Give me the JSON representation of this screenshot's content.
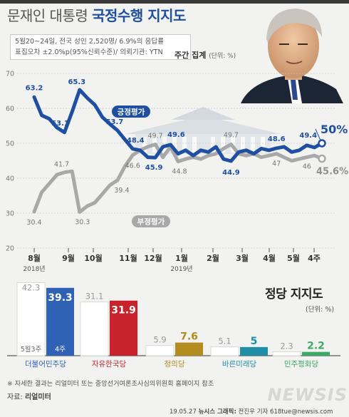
{
  "header": {
    "title_prefix": "문재인 대통령",
    "title_main": "국정수행 지지도",
    "info_line1": "5월20~24일, 전국 성인 2,520명/ 6.9%의 응답률",
    "info_line2": "표집오차 ±2.0%p(95%신뢰수준)/ 의뢰기관: YTN",
    "unit_main": "주간 집계",
    "unit_sub": "(단위: %)"
  },
  "colors": {
    "approve": "#1e4fa0",
    "disapprove": "#a8a8a8",
    "accent": "#1e4fa0",
    "background": "#f2f2f0",
    "party_minjoo": "#2f62b4",
    "party_hankook": "#c8232c",
    "party_justice": "#b38b1e",
    "party_bareun": "#1f8fa6",
    "party_minpyeong": "#3aaa66"
  },
  "icons": {
    "portrait": "president-portrait",
    "background_art": "blue-house-illustration"
  },
  "chart_data": [
    {
      "type": "line",
      "ylim": [
        20,
        70
      ],
      "yticks": [
        20,
        30,
        40,
        50,
        60,
        70
      ],
      "grid": true,
      "x_labels": [
        "8월",
        "9월",
        "10월",
        "11월",
        "12월",
        "1월",
        "2월",
        "3월",
        "4월",
        "5월",
        "4주"
      ],
      "x_sublabels": [
        {
          "label": "2018년",
          "at": "8월"
        },
        {
          "label": "2019년",
          "at": "1월"
        }
      ],
      "series": [
        {
          "name": "긍정평가",
          "values": [
            63.2,
            58.0,
            57.0,
            54.5,
            53.1,
            59.0,
            65.3,
            63.0,
            61.0,
            57.5,
            55.5,
            53.7,
            51.0,
            48.4,
            48.0,
            46.0,
            45.9,
            49.0,
            49.6,
            47.0,
            48.0,
            46.5,
            48.0,
            47.5,
            49.0,
            45.5,
            44.9,
            47.5,
            48.0,
            47.0,
            48.5,
            48.0,
            48.6,
            49.0,
            47.5,
            48.0,
            49.4,
            48.8,
            50.0
          ],
          "labels": [
            {
              "i": 0,
              "text": "63.2"
            },
            {
              "i": 4,
              "text": "53.1"
            },
            {
              "i": 6,
              "text": "65.3"
            },
            {
              "i": 11,
              "text": "53.7"
            },
            {
              "i": 13,
              "text": "48.4"
            },
            {
              "i": 16,
              "text": "45.9"
            },
            {
              "i": 18,
              "text": "49.6"
            },
            {
              "i": 26,
              "text": "44.9"
            },
            {
              "i": 32,
              "text": "48.6"
            },
            {
              "i": 36,
              "text": "49.4"
            },
            {
              "i": 38,
              "text": "50%"
            }
          ]
        },
        {
          "name": "부정평가",
          "values": [
            30.4,
            36.0,
            38.5,
            41.0,
            41.7,
            42.0,
            30.3,
            32.0,
            33.0,
            35.5,
            38.0,
            39.4,
            43.5,
            46.6,
            48.0,
            49.0,
            49.7,
            46.0,
            49.0,
            44.8,
            45.5,
            46.0,
            45.5,
            46.5,
            47.0,
            48.5,
            49.7,
            47.0,
            46.5,
            47.0,
            46.0,
            46.5,
            47.0,
            46.0,
            45.0,
            45.5,
            46.0,
            46.5,
            45.6
          ],
          "labels": [
            {
              "i": 0,
              "text": "30.4"
            },
            {
              "i": 4,
              "text": "41.7"
            },
            {
              "i": 6,
              "text": "30.3"
            },
            {
              "i": 11,
              "text": "39.4"
            },
            {
              "i": 13,
              "text": "46.6"
            },
            {
              "i": 16,
              "text": "49.7"
            },
            {
              "i": 19,
              "text": "44.8"
            },
            {
              "i": 26,
              "text": "49.7"
            },
            {
              "i": 32,
              "text": "47"
            },
            {
              "i": 36,
              "text": "46"
            },
            {
              "i": 38,
              "text": "45.6%"
            }
          ]
        }
      ]
    },
    {
      "type": "bar",
      "title": "정당 지지도",
      "unit": "(단위: %)",
      "ylim": [
        0,
        45
      ],
      "period_labels": [
        "5월3주",
        "4주"
      ],
      "categories": [
        "더불어민주당",
        "자유한국당",
        "정의당",
        "바른미래당",
        "민주평화당"
      ],
      "series": [
        {
          "name": "5월3주",
          "values": [
            42.3,
            31.1,
            5.9,
            5.1,
            2.3
          ],
          "labels": [
            "42.3",
            "31.1",
            "5.9",
            "5.1",
            "2.3"
          ]
        },
        {
          "name": "4주",
          "values": [
            39.3,
            31.9,
            7.6,
            5.0,
            2.2
          ],
          "labels": [
            "39.3",
            "31.9",
            "7.6",
            "5",
            "2.2"
          ]
        }
      ]
    }
  ],
  "footer": {
    "footnote": "※ 자세한 결과는 리얼미터 또는 중앙선거여론조사심의위원회 홈페이지 참조",
    "source_label": "자료:",
    "source_name": "리얼미터",
    "credit_date": "19.05.27",
    "credit_org": "뉴시스 그래픽:",
    "credit_person": "전진우 기자 618tue@newsis.com",
    "logo_text": "NEWSIS"
  }
}
